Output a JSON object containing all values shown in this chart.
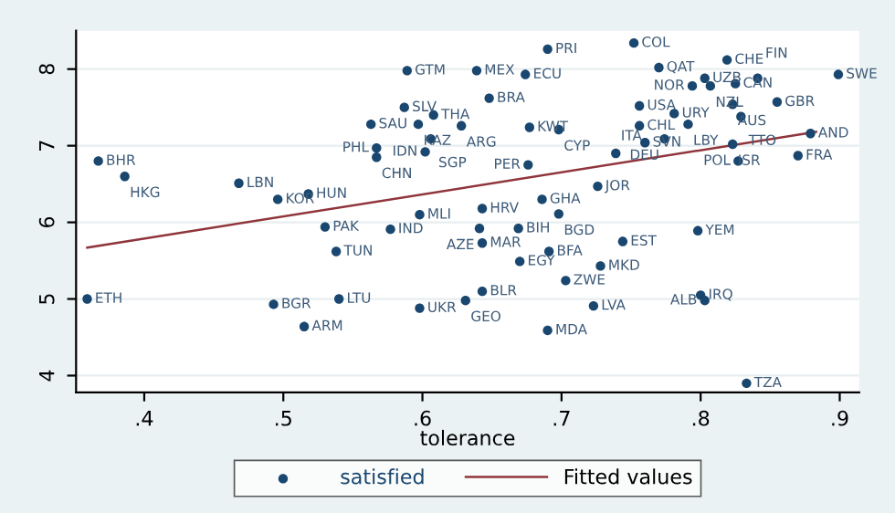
{
  "chart_data": {
    "type": "scatter",
    "xlabel": "tolerance",
    "xlim": [
      0.351,
      0.914
    ],
    "ylim": [
      3.78,
      8.5
    ],
    "xticks": [
      {
        "value": 0.4,
        "label": ".4"
      },
      {
        "value": 0.5,
        "label": ".5"
      },
      {
        "value": 0.6,
        "label": ".6"
      },
      {
        "value": 0.7,
        "label": ".7"
      },
      {
        "value": 0.8,
        "label": ".8"
      },
      {
        "value": 0.9,
        "label": ".9"
      }
    ],
    "yticks": [
      4,
      5,
      6,
      7,
      8
    ],
    "grid": "y",
    "legend": "bottom",
    "marker": "circle",
    "series": [
      {
        "name": "satisfied",
        "color": "#1a476f",
        "x": [
          0.359,
          0.493,
          0.54,
          0.515,
          0.598,
          0.367,
          0.386,
          0.468,
          0.496,
          0.518,
          0.53,
          0.589,
          0.587,
          0.608,
          0.563,
          0.597,
          0.628,
          0.606,
          0.602,
          0.567,
          0.567,
          0.639,
          0.674,
          0.69,
          0.752,
          0.648,
          0.77,
          0.819,
          0.803,
          0.794,
          0.807,
          0.825,
          0.841,
          0.899,
          0.823,
          0.855,
          0.756,
          0.781,
          0.756,
          0.791,
          0.829,
          0.677,
          0.698,
          0.774,
          0.739,
          0.76,
          0.823,
          0.879,
          0.87,
          0.827,
          0.676,
          0.726,
          0.686,
          0.643,
          0.698,
          0.598,
          0.577,
          0.643,
          0.641,
          0.669,
          0.538,
          0.744,
          0.798,
          0.67,
          0.691,
          0.728,
          0.703,
          0.643,
          0.631,
          0.723,
          0.8,
          0.803,
          0.69,
          0.833
        ],
        "values": [
          5.0,
          4.93,
          5.0,
          4.64,
          4.88,
          6.8,
          6.6,
          6.51,
          6.3,
          6.37,
          5.94,
          7.98,
          7.5,
          7.4,
          7.28,
          7.28,
          7.26,
          7.09,
          6.92,
          6.97,
          6.85,
          7.98,
          7.93,
          8.26,
          8.34,
          7.62,
          8.02,
          8.12,
          7.88,
          7.78,
          7.78,
          7.81,
          7.88,
          7.93,
          7.54,
          7.57,
          7.52,
          7.42,
          7.26,
          7.28,
          7.38,
          7.24,
          7.21,
          7.09,
          6.9,
          7.04,
          7.02,
          7.16,
          6.87,
          6.8,
          6.75,
          6.47,
          6.3,
          6.18,
          6.11,
          6.1,
          5.91,
          5.73,
          5.92,
          5.92,
          5.62,
          5.75,
          5.89,
          5.49,
          5.62,
          5.43,
          5.24,
          5.1,
          4.98,
          4.91,
          5.05,
          4.98,
          4.59,
          3.9
        ],
        "value_labels": [
          "ETH",
          "BGR",
          "LTU",
          "ARM",
          "UKR",
          "BHR",
          "HKG",
          "LBN",
          "KOR",
          "HUN",
          "PAK",
          "GTM",
          "SLV",
          "THA",
          "SAU",
          "KAZ",
          "ARG",
          "SGP",
          "IDN",
          "PHL",
          "CHN",
          "MEX",
          "ECU",
          "PRI",
          "COL",
          "BRA",
          "QAT",
          "CHE",
          "UZB",
          "NOR",
          "NZL",
          "CAN",
          "FIN",
          "SWE",
          "AUS",
          "GBR",
          "USA",
          "URY",
          "CHL",
          "LBY",
          "TTO",
          "KWT",
          "CYP",
          "DEU",
          "ITA",
          "SVN",
          "ISR",
          "AND",
          "FRA",
          "POL",
          "PER",
          "JOR",
          "GHA",
          "HRV",
          "BGD",
          "MLI",
          "IND",
          "MAR",
          "AZE",
          "BIH",
          "TUN",
          "EST",
          "YEM",
          "EGY",
          "BFA",
          "MKD",
          "ZWE",
          "BLR",
          "GEO",
          "LVA",
          "IRQ",
          "ALB",
          "MDA",
          "TZA"
        ]
      },
      {
        "name": "Fitted values",
        "type": "line",
        "color": "#90353b",
        "line_style": "solid",
        "marker": "none",
        "x": [
          0.359,
          0.883
        ],
        "values": [
          5.67,
          7.18
        ]
      }
    ]
  }
}
